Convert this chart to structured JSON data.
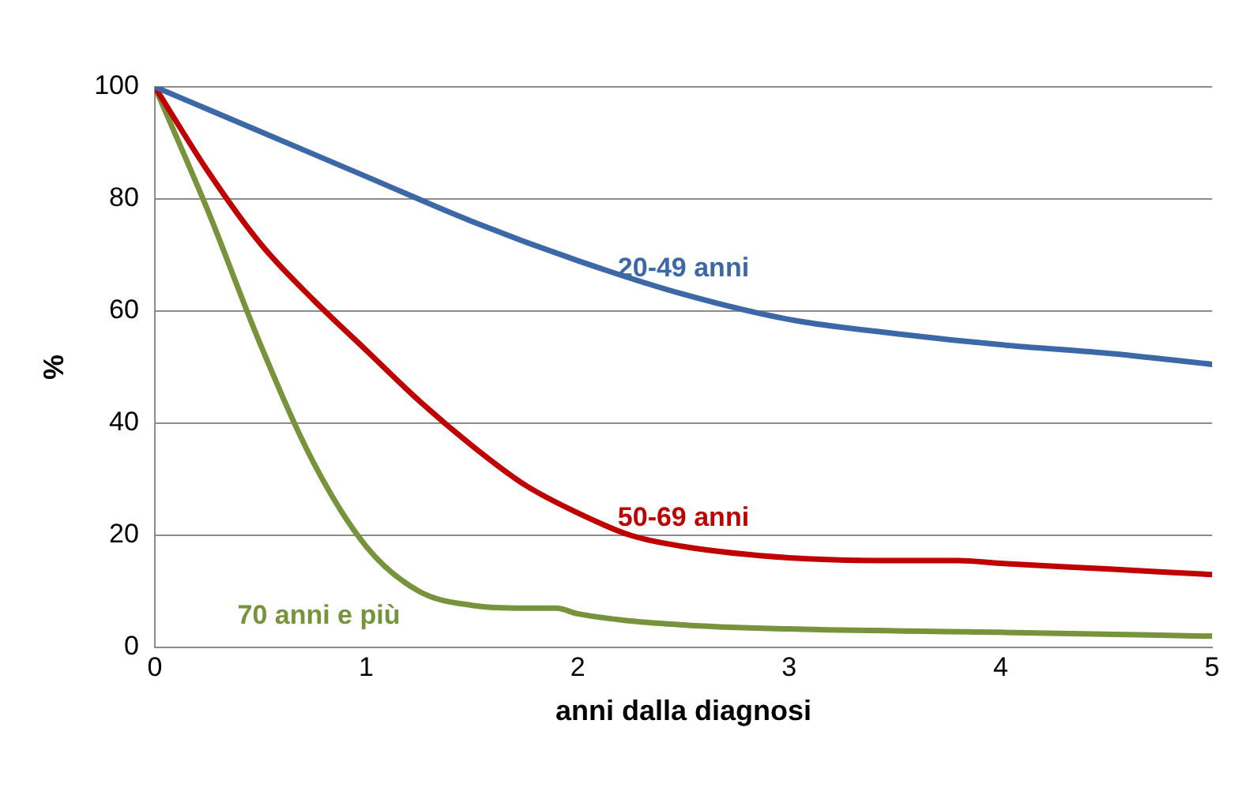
{
  "chart_data": {
    "type": "line",
    "xlabel": "anni dalla diagnosi",
    "ylabel": "%",
    "xlim": [
      0,
      5
    ],
    "xticks": [
      0,
      1,
      2,
      3,
      4,
      5
    ],
    "ylim": [
      0,
      100
    ],
    "yticks": [
      0,
      20,
      40,
      60,
      80,
      100
    ],
    "grid": "y",
    "legend": false,
    "marker": "none",
    "line_style": "solid",
    "series": [
      {
        "name": "20-49 anni",
        "color": "#3c68a8",
        "x": [
          0,
          0.5,
          1,
          1.5,
          2,
          2.5,
          3,
          3.5,
          4,
          4.5,
          5
        ],
        "values": [
          100,
          92,
          84,
          76,
          69,
          63,
          58.5,
          56,
          54,
          52.5,
          50.5
        ]
      },
      {
        "name": "50-69 anni",
        "color": "#c00000",
        "x": [
          0,
          0.25,
          0.5,
          0.75,
          1,
          1.25,
          1.5,
          1.75,
          2,
          2.25,
          2.5,
          3,
          3.5,
          3.8,
          4,
          4.5,
          5
        ],
        "values": [
          100,
          85,
          72,
          62,
          53,
          44,
          36,
          29,
          24,
          20,
          18,
          16,
          15.5,
          15.5,
          15,
          14,
          13
        ]
      },
      {
        "name": "70 anni e più",
        "color": "#77933c",
        "x": [
          0,
          0.25,
          0.5,
          0.75,
          1,
          1.25,
          1.5,
          1.75,
          1.9,
          2,
          2.5,
          3,
          4,
          5
        ],
        "values": [
          100,
          78,
          54,
          33,
          18,
          10,
          7.5,
          7,
          7,
          6,
          4,
          3.3,
          2.7,
          2
        ]
      }
    ]
  }
}
